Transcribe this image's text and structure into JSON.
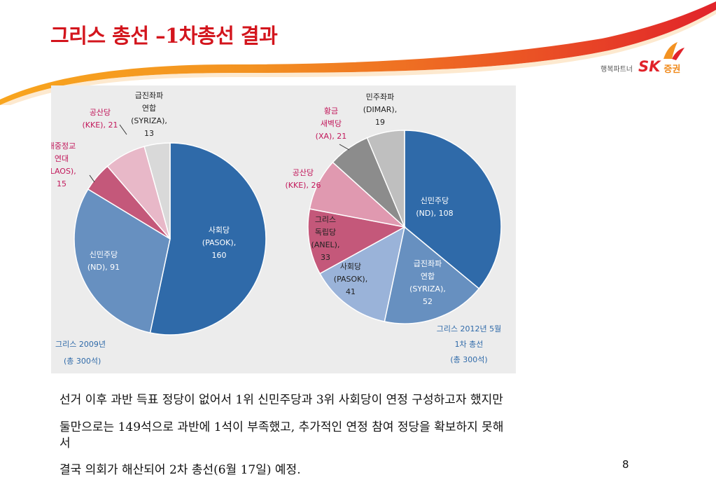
{
  "slide": {
    "title": "그리스 총선 –1차총선 결과",
    "brand": {
      "tagline": "행복파트너",
      "logo_text": "SK",
      "securities": "증권"
    },
    "colors": {
      "title_red": "#d3151d",
      "swoosh_orange": "#f59a1e",
      "swoosh_red": "#e1232a"
    },
    "body": {
      "lines": [
        "선거 이후 과반 득표 정당이 없어서 1위 신민주당과 3위 사회당이 연정 구성하고자 했지만",
        "둘만으로는 149석으로 과반에 1석이 부족했고, 추가적인 연정 참여 정당을 확보하지 못해",
        "서",
        "결국 의회가 해산되어 2차 총선(6월 17일) 예정."
      ],
      "page_number": "8"
    }
  },
  "chart_data": [
    {
      "type": "pie",
      "caption": [
        "그리스 2009년",
        "(총 300석)"
      ],
      "slices": [
        {
          "party": "사회당",
          "abbr": "(PASOK),",
          "seats": 160,
          "label": [
            "사회당",
            "(PASOK),",
            "160"
          ],
          "color": "#2f6aa9",
          "text_color": "#ffffff"
        },
        {
          "party": "신민주당",
          "abbr": "(ND),",
          "seats": 91,
          "label": [
            "신민주당",
            "(ND), 91"
          ],
          "color": "#6790c0",
          "text_color": "#ffffff"
        },
        {
          "party": "대중정교 연대",
          "abbr": "(LAOS),",
          "seats": 15,
          "label": [
            "대중정교",
            "연대",
            "(LAOS),",
            "15"
          ],
          "color": "#c4587a",
          "text_color": "#c2185b"
        },
        {
          "party": "공산당",
          "abbr": "(KKE),",
          "seats": 21,
          "label": [
            "공산당",
            "(KKE), 21"
          ],
          "color": "#e8b8c8",
          "text_color": "#c2185b"
        },
        {
          "party": "급진좌파 연합",
          "abbr": "(SYRIZA),",
          "seats": 13,
          "label": [
            "급진좌파",
            "연합",
            "(SYRIZA),",
            "13"
          ],
          "color": "#d9d9d9",
          "text_color": "#222222"
        }
      ]
    },
    {
      "type": "pie",
      "caption": [
        "그리스 2012년 5월",
        "1차 총선",
        "(총 300석)"
      ],
      "slices": [
        {
          "party": "신민주당",
          "abbr": "(ND),",
          "seats": 108,
          "label": [
            "신민주당",
            "(ND), 108"
          ],
          "color": "#2f6aa9",
          "text_color": "#ffffff"
        },
        {
          "party": "급진좌파 연합",
          "abbr": "(SYRIZA),",
          "seats": 52,
          "label": [
            "급진좌파",
            "연합",
            "(SYRIZA),",
            "52"
          ],
          "color": "#6790c0",
          "text_color": "#ffffff"
        },
        {
          "party": "사회당",
          "abbr": "(PASOK),",
          "seats": 41,
          "label": [
            "사회당",
            "(PASOK),",
            "41"
          ],
          "color": "#9ab3d9",
          "text_color": "#222222"
        },
        {
          "party": "그리스 독립당",
          "abbr": "(ANEL),",
          "seats": 33,
          "label": [
            "그리스",
            "독립당",
            "(ANEL),",
            "33"
          ],
          "color": "#c4587a",
          "text_color": "#222222"
        },
        {
          "party": "공산당",
          "abbr": "(KKE),",
          "seats": 26,
          "label": [
            "공산당",
            "(KKE), 26"
          ],
          "color": "#e099b0",
          "text_color": "#c2185b"
        },
        {
          "party": "황금 새벽당",
          "abbr": "(XA),",
          "seats": 21,
          "label": [
            "황금",
            "새벽당",
            "(XA), 21"
          ],
          "color": "#8c8c8c",
          "text_color": "#c2185b"
        },
        {
          "party": "민주좌파",
          "abbr": "(DIMAR),",
          "seats": 19,
          "label": [
            "민주좌파",
            "(DIMAR),",
            "19"
          ],
          "color": "#bfbfbf",
          "text_color": "#222222"
        }
      ]
    }
  ]
}
